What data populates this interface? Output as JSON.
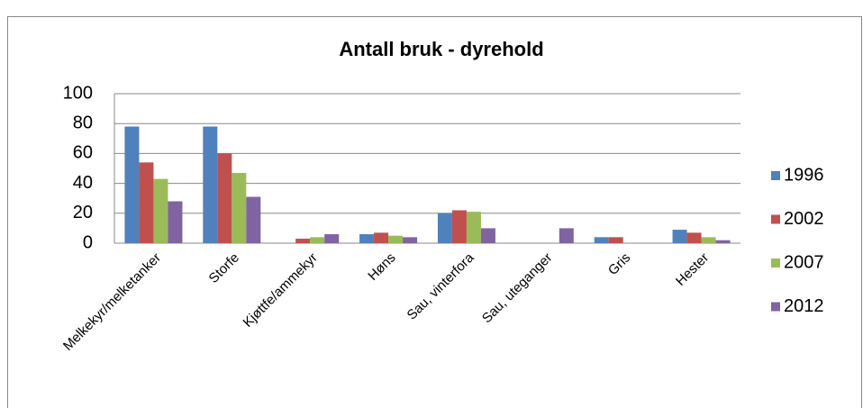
{
  "chart_data": {
    "type": "bar",
    "title": "Antall bruk - dyrehold",
    "categories": [
      "Melkekyr/melketanker",
      "Storfe",
      "Kjøttfe/ammekyr",
      "Høns",
      "Sau, vinterfora",
      "Sau, uteganger",
      "Gris",
      "Hester"
    ],
    "series": [
      {
        "name": "1996",
        "color": "#4f81bd",
        "values": [
          78,
          78,
          0,
          6,
          20,
          0,
          4,
          9
        ]
      },
      {
        "name": "2002",
        "color": "#c0504d",
        "values": [
          54,
          60,
          3,
          7,
          22,
          0,
          4,
          7
        ]
      },
      {
        "name": "2007",
        "color": "#9bbb59",
        "values": [
          43,
          47,
          4,
          5,
          21,
          0,
          0,
          4
        ]
      },
      {
        "name": "2012",
        "color": "#8064a2",
        "values": [
          28,
          31,
          6,
          4,
          10,
          10,
          0,
          2
        ]
      }
    ],
    "ylim": [
      0,
      100
    ],
    "yticks": [
      0,
      20,
      40,
      60,
      80,
      100
    ],
    "grid": true,
    "legend": "right"
  }
}
